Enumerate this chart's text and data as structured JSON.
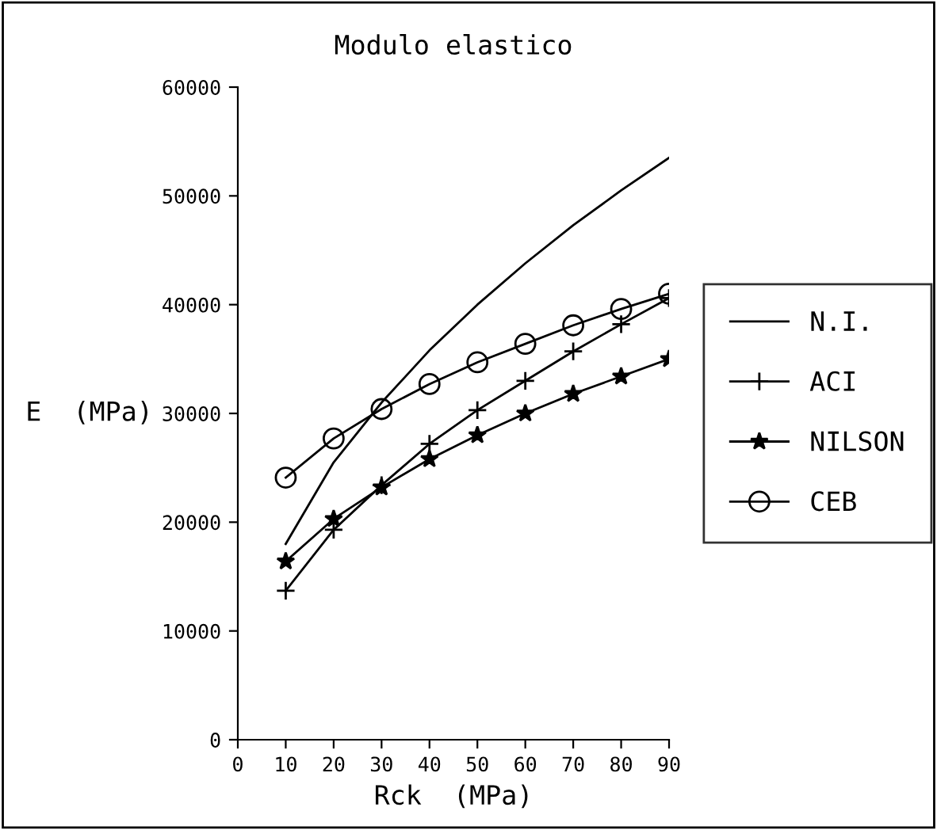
{
  "chart_data": {
    "type": "line",
    "title": "Modulo elastico",
    "xlabel": "Rck  (MPa)",
    "ylabel": "E  (MPa)",
    "x": [
      10,
      20,
      30,
      40,
      50,
      60,
      70,
      80,
      90
    ],
    "series": [
      {
        "name": "N.I.",
        "color": "#000000",
        "marker": "none",
        "values": [
          18000,
          25500,
          31000,
          35800,
          40000,
          43800,
          47300,
          50500,
          53500
        ]
      },
      {
        "name": "ACI",
        "color": "#000000",
        "marker": "cross",
        "values": [
          13700,
          19300,
          23400,
          27200,
          30300,
          33000,
          35700,
          38200,
          40600
        ]
      },
      {
        "name": "NILSON",
        "color": "#000000",
        "marker": "star",
        "values": [
          16400,
          20300,
          23200,
          25800,
          28000,
          30000,
          31800,
          33400,
          35000
        ]
      },
      {
        "name": "CEB",
        "color": "#000000",
        "marker": "circle",
        "values": [
          24100,
          27700,
          30400,
          32700,
          34700,
          36400,
          38100,
          39600,
          41000
        ]
      }
    ],
    "xlim": [
      0,
      90
    ],
    "xticks": [
      0,
      10,
      20,
      30,
      40,
      50,
      60,
      70,
      80,
      90
    ],
    "ylim": [
      0,
      60000
    ],
    "yticks": [
      0,
      10000,
      20000,
      30000,
      40000,
      50000,
      60000
    ],
    "grid": false,
    "legend": "right",
    "line_style": "solid"
  }
}
